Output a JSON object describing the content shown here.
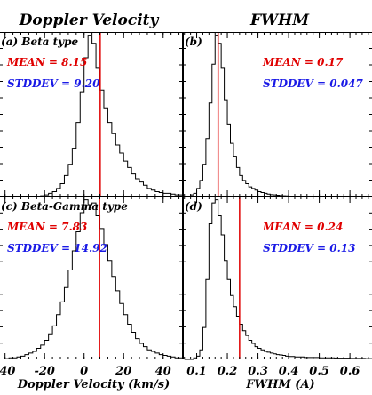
{
  "colors": {
    "mean": "#e00000",
    "stddev": "#1a1ae6",
    "axes": "#000000"
  },
  "columns": [
    "Doppler Velocity",
    "FWHM"
  ],
  "chart_data": [
    {
      "type": "histogram",
      "column": "Doppler Velocity",
      "label": "(a) Beta type",
      "mean_text": "MEAN = 8.15",
      "std_text": "STDDEV = 9.20",
      "mean": 8.15,
      "xlim": [
        -43,
        50
      ],
      "ylim": [
        0,
        1.02
      ],
      "xticks": [
        -40,
        -20,
        0,
        20,
        40
      ],
      "tick_labels": [],
      "xlabel": "",
      "bins": [
        -40,
        -38,
        -36,
        -34,
        -32,
        -30,
        -28,
        -26,
        -24,
        -22,
        -20,
        -18,
        -16,
        -14,
        -12,
        -10,
        -8,
        -6,
        -4,
        -2,
        0,
        2,
        4,
        6,
        8,
        10,
        12,
        14,
        16,
        18,
        20,
        22,
        24,
        26,
        28,
        30,
        32,
        34,
        36,
        38,
        40,
        42,
        44,
        46,
        48
      ],
      "values": [
        0.0,
        0.0,
        0.0,
        0.0,
        0.0,
        0.0,
        0.0,
        0.0,
        0.0,
        0.005,
        0.01,
        0.02,
        0.03,
        0.05,
        0.08,
        0.13,
        0.2,
        0.3,
        0.46,
        0.65,
        0.86,
        1.0,
        0.95,
        0.8,
        0.66,
        0.55,
        0.46,
        0.39,
        0.32,
        0.27,
        0.22,
        0.18,
        0.14,
        0.11,
        0.09,
        0.07,
        0.05,
        0.04,
        0.03,
        0.025,
        0.02,
        0.02,
        0.015,
        0.01,
        0.01
      ]
    },
    {
      "type": "histogram",
      "column": "FWHM",
      "label": "(b)",
      "mean_text": "MEAN = 0.17",
      "std_text": "STDDEV = 0.047",
      "mean": 0.17,
      "xlim": [
        0.055,
        0.675
      ],
      "ylim": [
        0,
        1.02
      ],
      "xticks": [
        0.1,
        0.2,
        0.3,
        0.4,
        0.5,
        0.6
      ],
      "tick_labels": [],
      "xlabel": "",
      "bins": [
        0.06,
        0.07,
        0.08,
        0.09,
        0.1,
        0.11,
        0.12,
        0.13,
        0.14,
        0.15,
        0.16,
        0.17,
        0.18,
        0.19,
        0.2,
        0.21,
        0.22,
        0.23,
        0.24,
        0.25,
        0.26,
        0.27,
        0.28,
        0.29,
        0.3,
        0.31,
        0.32,
        0.33,
        0.34,
        0.35,
        0.36,
        0.37,
        0.38,
        0.39,
        0.4,
        0.42,
        0.45,
        0.5,
        0.55,
        0.6,
        0.65
      ],
      "values": [
        0.0,
        0.0,
        0.01,
        0.02,
        0.05,
        0.1,
        0.2,
        0.36,
        0.58,
        0.82,
        1.0,
        0.95,
        0.8,
        0.6,
        0.45,
        0.33,
        0.25,
        0.18,
        0.13,
        0.1,
        0.08,
        0.06,
        0.05,
        0.04,
        0.03,
        0.025,
        0.02,
        0.015,
        0.012,
        0.01,
        0.008,
        0.006,
        0.005,
        0.004,
        0.003,
        0.003,
        0.002,
        0.002,
        0.001,
        0.001,
        0.001
      ]
    },
    {
      "type": "histogram",
      "column": "Doppler Velocity",
      "label": "(c) Beta-Gamma type",
      "mean_text": "MEAN = 7.83",
      "std_text": "STDDEV = 14.92",
      "mean": 7.83,
      "xlim": [
        -43,
        50
      ],
      "ylim": [
        0,
        1.02
      ],
      "xticks": [
        -40,
        -20,
        0,
        20,
        40
      ],
      "tick_labels": [
        "-40",
        "-20",
        "0",
        "20",
        "40"
      ],
      "xlabel": "Doppler Velocity (km/s)",
      "bins": [
        -40,
        -38,
        -36,
        -34,
        -32,
        -30,
        -28,
        -26,
        -24,
        -22,
        -20,
        -18,
        -16,
        -14,
        -12,
        -10,
        -8,
        -6,
        -4,
        -2,
        0,
        2,
        4,
        6,
        8,
        10,
        12,
        14,
        16,
        18,
        20,
        22,
        24,
        26,
        28,
        30,
        32,
        34,
        36,
        38,
        40,
        42,
        44,
        46,
        48
      ],
      "values": [
        0.005,
        0.01,
        0.01,
        0.015,
        0.02,
        0.03,
        0.04,
        0.05,
        0.07,
        0.09,
        0.12,
        0.16,
        0.21,
        0.28,
        0.36,
        0.45,
        0.56,
        0.68,
        0.8,
        0.92,
        1.0,
        0.97,
        0.98,
        0.9,
        0.82,
        0.72,
        0.62,
        0.52,
        0.43,
        0.35,
        0.28,
        0.22,
        0.17,
        0.13,
        0.1,
        0.08,
        0.06,
        0.05,
        0.04,
        0.03,
        0.025,
        0.02,
        0.015,
        0.01,
        0.01
      ]
    },
    {
      "type": "histogram",
      "column": "FWHM",
      "label": "(d)",
      "mean_text": "MEAN = 0.24",
      "std_text": "STDDEV = 0.13",
      "mean": 0.24,
      "xlim": [
        0.055,
        0.675
      ],
      "ylim": [
        0,
        1.02
      ],
      "xticks": [
        0.1,
        0.2,
        0.3,
        0.4,
        0.5,
        0.6
      ],
      "tick_labels": [
        "0.1",
        "0.2",
        "0.3",
        "0.4",
        "0.5",
        "0.6"
      ],
      "xlabel": "FWHM (A)",
      "bins": [
        0.06,
        0.07,
        0.08,
        0.09,
        0.1,
        0.11,
        0.12,
        0.13,
        0.14,
        0.15,
        0.16,
        0.17,
        0.18,
        0.19,
        0.2,
        0.21,
        0.22,
        0.23,
        0.24,
        0.25,
        0.26,
        0.27,
        0.28,
        0.29,
        0.3,
        0.31,
        0.32,
        0.33,
        0.34,
        0.35,
        0.36,
        0.37,
        0.38,
        0.39,
        0.4,
        0.42,
        0.45,
        0.5,
        0.55,
        0.6,
        0.65
      ],
      "values": [
        0.0,
        0.0,
        0.0,
        0.01,
        0.02,
        0.06,
        0.2,
        0.5,
        0.85,
        0.98,
        1.0,
        0.9,
        0.78,
        0.62,
        0.5,
        0.4,
        0.33,
        0.27,
        0.22,
        0.18,
        0.15,
        0.12,
        0.1,
        0.08,
        0.07,
        0.06,
        0.05,
        0.045,
        0.04,
        0.035,
        0.03,
        0.028,
        0.025,
        0.02,
        0.018,
        0.015,
        0.012,
        0.01,
        0.008,
        0.006,
        0.005
      ]
    }
  ]
}
